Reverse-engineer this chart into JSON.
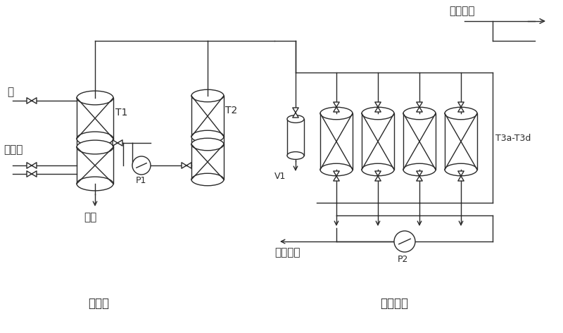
{
  "bg_color": "#ffffff",
  "line_color": "#2a2a2a",
  "title_pretreatment": "预处理",
  "title_psa": "变压吸附",
  "label_water": "水",
  "label_mixgas": "混合气",
  "label_hcl": "盐酸",
  "label_cl2": "产品氯气",
  "label_o2": "产品氧气",
  "label_T1": "T1",
  "label_T2": "T2",
  "label_T3": "T3a-T3d",
  "label_V1": "V1",
  "label_P1": "P1",
  "label_P2": "P2"
}
